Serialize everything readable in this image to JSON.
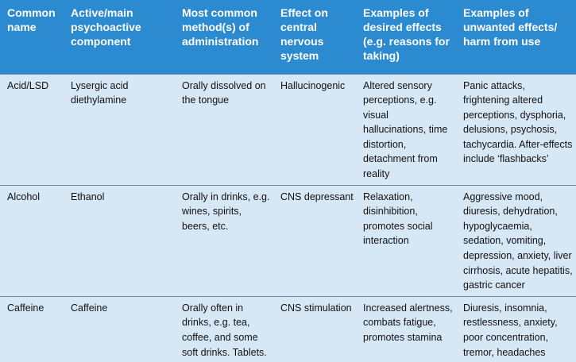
{
  "table": {
    "headers": [
      "Common name",
      "Active/main psychoactive component",
      "Most common method(s) of administration",
      "Effect on central nervous system",
      "Examples of desired effects (e.g. reasons for taking)",
      "Examples of unwanted effects/ harm from use"
    ],
    "rows": [
      {
        "cells": [
          "Acid/LSD",
          "Lysergic acid diethylamine",
          "Orally dissolved on the tongue",
          "Hallucinogenic",
          "Altered sensory perceptions, e.g. visual hallucinations, time distortion, detachment from reality",
          "Panic attacks, frightening altered perceptions, dysphoria, delusions, psychosis, tachycardia. After-effects include ‘flashbacks’"
        ]
      },
      {
        "cells": [
          "Alcohol",
          "Ethanol",
          "Orally in drinks, e.g. wines, spirits, beers, etc.",
          "CNS depressant",
          "Relaxation, disinhibition, promotes social interaction",
          "Aggressive mood, diuresis, dehydration, hypoglycaemia, sedation, vomiting, depression, anxiety, liver cirrhosis, acute hepatitis, gastric cancer"
        ]
      },
      {
        "cells": [
          "Caffeine",
          "Caffeine",
          "Orally often in drinks, e.g. tea, coffee, and some soft drinks. Tablets.",
          "CNS stimulation",
          "Increased alertness, combats fatigue, promotes stamina",
          "Diuresis, insomnia, restlessness, anxiety, poor concentration, tremor, headaches"
        ]
      }
    ]
  },
  "colors": {
    "header_background": "#2b8ad0",
    "header_text": "#ffffff",
    "row_background": "#d6e7f6",
    "row_divider": "#6a8cab",
    "body_text": "#111111"
  }
}
